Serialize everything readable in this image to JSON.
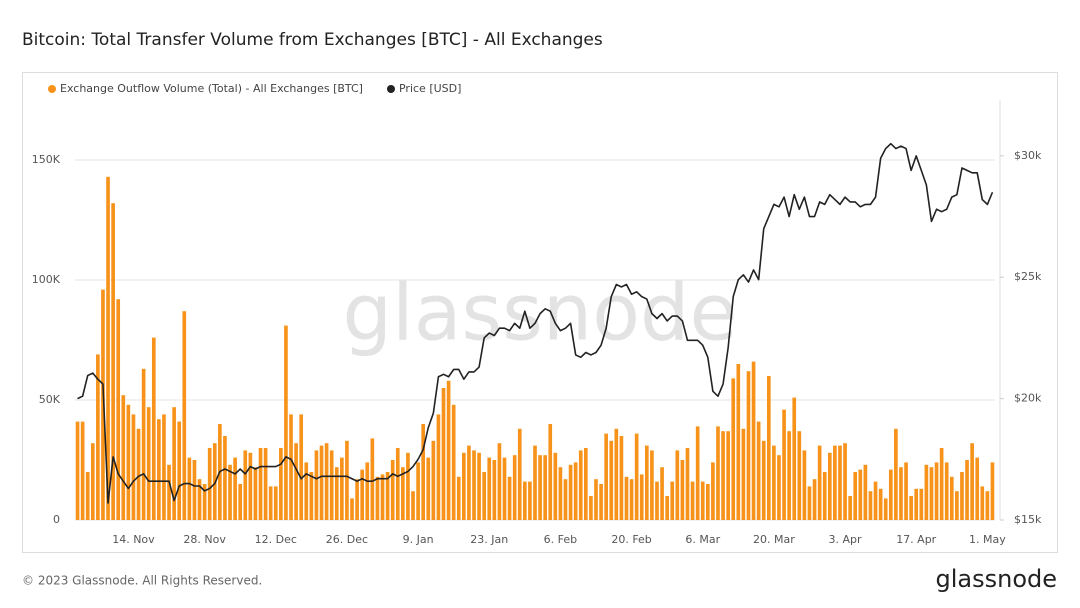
{
  "chart_data": {
    "type": "bar",
    "title": "Bitcoin: Total Transfer Volume from Exchanges [BTC] - All Exchanges",
    "categories": [
      null,
      null,
      null,
      null,
      null,
      null,
      null,
      null,
      null,
      null,
      null,
      "14. Nov",
      null,
      null,
      null,
      null,
      null,
      null,
      null,
      null,
      null,
      null,
      null,
      null,
      null,
      "28. Nov",
      null,
      null,
      null,
      null,
      null,
      null,
      null,
      null,
      null,
      null,
      null,
      null,
      null,
      "12. Dec",
      null,
      null,
      null,
      null,
      null,
      null,
      null,
      null,
      null,
      null,
      null,
      null,
      null,
      "26. Dec",
      null,
      null,
      null,
      null,
      null,
      null,
      null,
      null,
      null,
      null,
      null,
      null,
      null,
      "9. Jan",
      null,
      null,
      null,
      null,
      null,
      null,
      null,
      null,
      null,
      null,
      null,
      null,
      null,
      "23. Jan",
      null,
      null,
      null,
      null,
      null,
      null,
      null,
      null,
      null,
      null,
      null,
      null,
      null,
      "6. Feb",
      null,
      null,
      null,
      null,
      null,
      null,
      null,
      null,
      null,
      null,
      null,
      null,
      null,
      "20. Feb",
      null,
      null,
      null,
      null,
      null,
      null,
      null,
      null,
      null,
      null,
      null,
      null,
      null,
      "6. Mar",
      null,
      null,
      null,
      null,
      null,
      null,
      null,
      null,
      null,
      null,
      null,
      null,
      null,
      "20. Mar",
      null,
      null,
      null,
      null,
      null,
      null,
      null,
      null,
      null,
      null,
      null,
      null,
      null,
      "3. Apr",
      null,
      null,
      null,
      null,
      null,
      null,
      null,
      null,
      null,
      null,
      null,
      null,
      null,
      "17. Apr",
      null,
      null,
      null,
      null,
      null,
      null,
      null,
      null,
      null,
      null,
      null,
      null,
      null,
      "1. May",
      null
    ],
    "series": [
      {
        "name": "Exchange Outflow Volume (Total) - All Exchanges [BTC]",
        "type": "bar",
        "color": "#f7931a",
        "values": [
          41000,
          41000,
          20000,
          32000,
          69000,
          96000,
          143000,
          132000,
          92000,
          52000,
          48000,
          44000,
          38000,
          63000,
          47000,
          76000,
          42000,
          44000,
          23000,
          47000,
          41000,
          87000,
          26000,
          25000,
          17000,
          15000,
          30000,
          32000,
          40000,
          35000,
          23000,
          26000,
          15000,
          29000,
          28000,
          22000,
          30000,
          30000,
          14000,
          14000,
          30000,
          81000,
          44000,
          32000,
          44000,
          24000,
          20000,
          29000,
          31000,
          32000,
          29000,
          22000,
          26000,
          33000,
          9000,
          17000,
          21000,
          24000,
          34000,
          18000,
          19000,
          20000,
          25000,
          30000,
          22000,
          28000,
          12000,
          24000,
          40000,
          26000,
          33000,
          44000,
          55000,
          58000,
          48000,
          18000,
          28000,
          31000,
          29000,
          28000,
          20000,
          26000,
          25000,
          32000,
          26000,
          18000,
          27000,
          38000,
          16000,
          16000,
          31000,
          27000,
          27000,
          40000,
          28000,
          22000,
          17000,
          23000,
          24000,
          29000,
          30000,
          10000,
          17000,
          15000,
          36000,
          33000,
          38000,
          35000,
          18000,
          17000,
          36000,
          19000,
          31000,
          29000,
          16000,
          22000,
          10000,
          16000,
          29000,
          25000,
          30000,
          16000,
          39000,
          16000,
          15000,
          24000,
          39000,
          37000,
          37000,
          59000,
          65000,
          38000,
          62000,
          66000,
          41000,
          33000,
          60000,
          31000,
          27000,
          46000,
          37000,
          51000,
          37000,
          29000,
          14000,
          17000,
          31000,
          20000,
          28000,
          31000,
          31000,
          32000,
          10000,
          20000,
          21000,
          23000,
          12000,
          16000,
          13000,
          9000,
          21000,
          38000,
          22000,
          24000,
          10000,
          13000,
          13000,
          23000,
          22000,
          24000,
          30000,
          24000,
          18000,
          12000,
          20000,
          25000,
          32000,
          26000,
          14000,
          12000,
          24000
        ]
      },
      {
        "name": "Price [USD]",
        "type": "line",
        "axis": "y2",
        "color": "#222222",
        "values": [
          20000,
          20100,
          20950,
          21050,
          20800,
          20600,
          15700,
          17600,
          16900,
          16600,
          16300,
          16600,
          16800,
          16900,
          16600,
          16600,
          16600,
          16600,
          16600,
          15800,
          16400,
          16500,
          16500,
          16400,
          16400,
          16200,
          16300,
          16500,
          17000,
          17100,
          17000,
          16900,
          17100,
          16900,
          17200,
          17100,
          17200,
          17200,
          17200,
          17200,
          17300,
          17600,
          17500,
          17100,
          16700,
          16900,
          16800,
          16700,
          16800,
          16800,
          16800,
          16800,
          16800,
          16800,
          16700,
          16600,
          16700,
          16600,
          16600,
          16700,
          16700,
          16700,
          16900,
          16800,
          16900,
          17000,
          17200,
          17500,
          17900,
          18800,
          19400,
          20900,
          21000,
          20900,
          21200,
          21200,
          20800,
          21100,
          21100,
          21300,
          22500,
          22700,
          22600,
          22900,
          22900,
          22800,
          23100,
          22900,
          23600,
          22900,
          23100,
          23500,
          23700,
          23600,
          23100,
          22800,
          22900,
          23100,
          21800,
          21700,
          21900,
          21800,
          21900,
          22200,
          22900,
          24200,
          24700,
          24600,
          24700,
          24300,
          24400,
          24200,
          24100,
          23500,
          23300,
          23500,
          23200,
          23400,
          23400,
          23200,
          22400,
          22400,
          22400,
          22200,
          21700,
          20300,
          20100,
          20600,
          22100,
          24200,
          24900,
          25100,
          24800,
          25300,
          24900,
          27000,
          27500,
          28000,
          27900,
          28300,
          27500,
          28400,
          27800,
          28300,
          27500,
          27500,
          28100,
          28000,
          28400,
          28200,
          28000,
          28300,
          28100,
          28100,
          27900,
          28000,
          28000,
          28300,
          29900,
          30300,
          30500,
          30300,
          30400,
          30300,
          29400,
          30000,
          29400,
          28800,
          27300,
          27800,
          27700,
          27800,
          28300,
          28400,
          29500,
          29400,
          29300,
          29300,
          28200,
          28000,
          28500
        ]
      }
    ],
    "ylim": [
      0,
      175000
    ],
    "yticks": [
      0,
      {
        "value": 50000,
        "label": "50K"
      },
      {
        "value": 100000,
        "label": "100K"
      },
      {
        "value": 150000,
        "label": "150K"
      }
    ],
    "y2lim": [
      15000,
      32300
    ],
    "y2ticks": [
      {
        "value": 15000,
        "label": "$15k"
      },
      {
        "value": 20000,
        "label": "$20k"
      },
      {
        "value": 25000,
        "label": "$25k"
      },
      {
        "value": 30000,
        "label": "$30k"
      }
    ],
    "grid": true,
    "legend": "top-left"
  },
  "watermark": "glassnode",
  "footer": {
    "copyright": "© 2023 Glassnode. All Rights Reserved.",
    "logo": "glassnode"
  }
}
